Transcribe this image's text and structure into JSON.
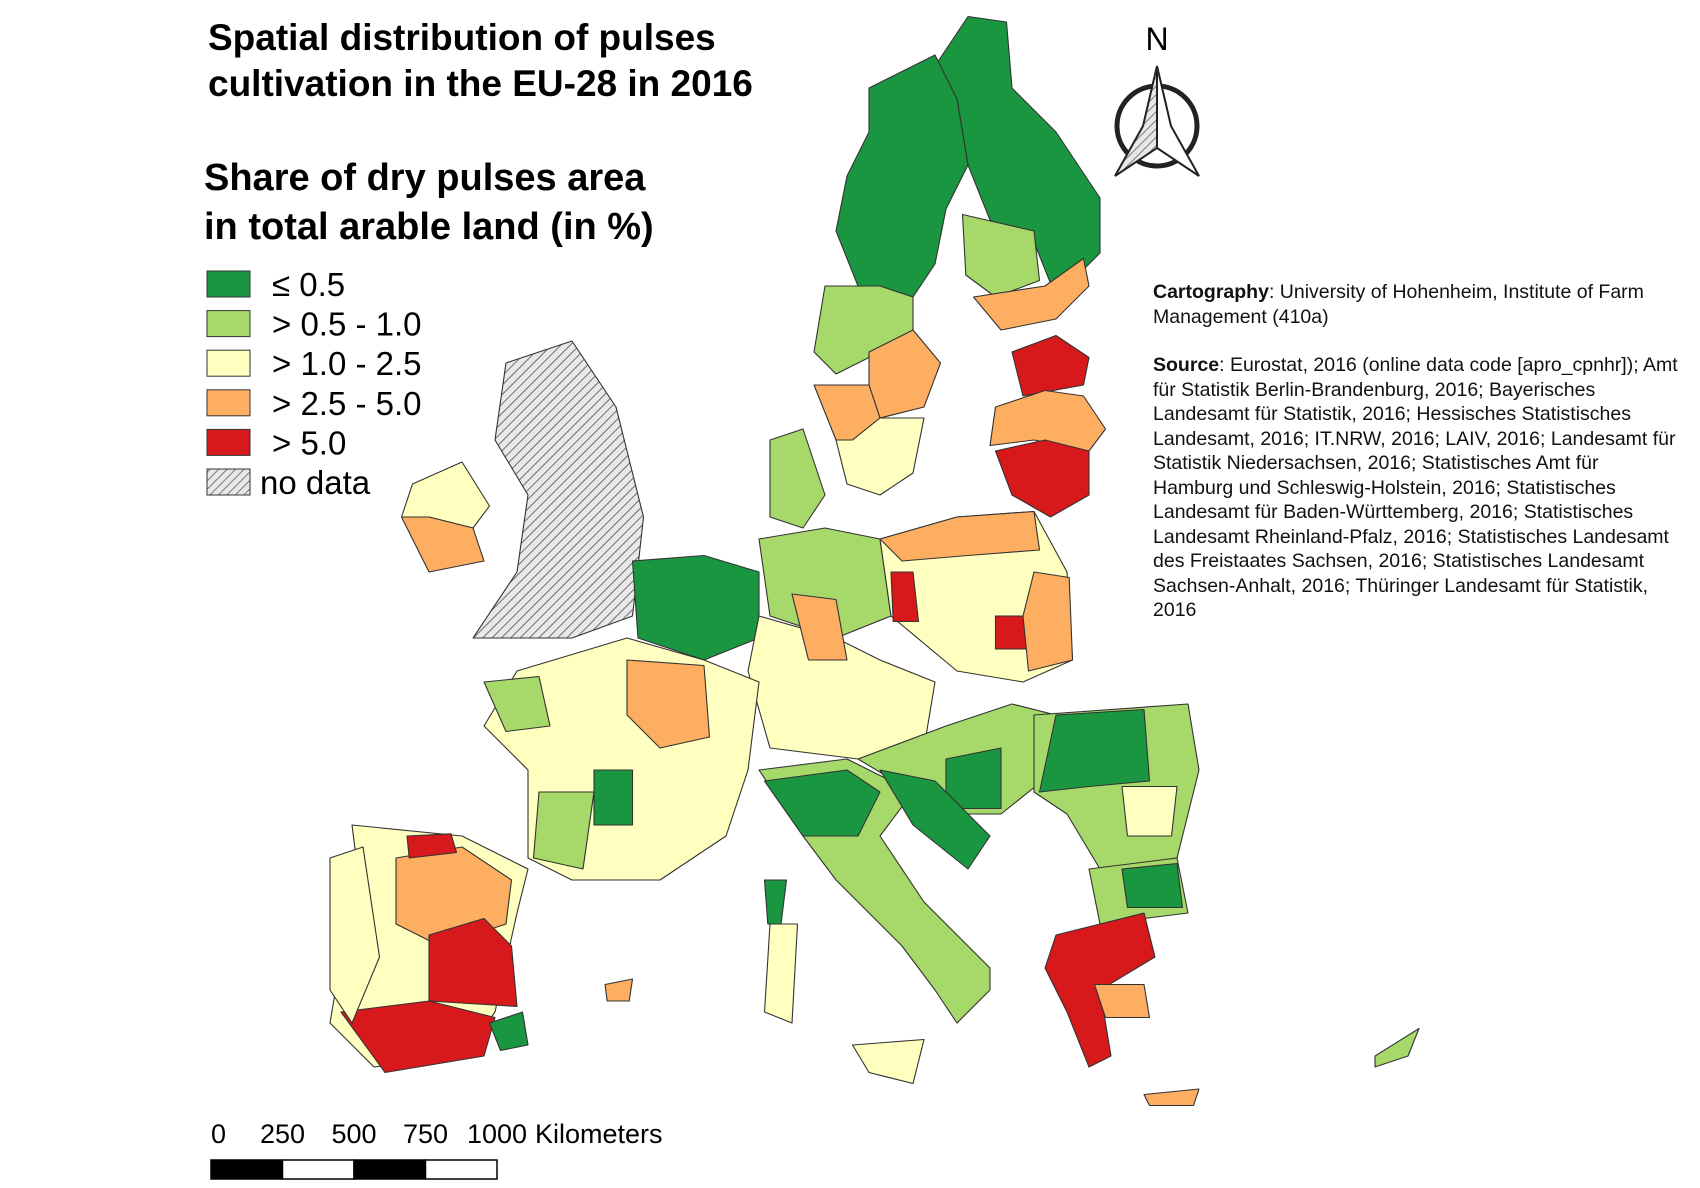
{
  "title": [
    "Spatial distribution of pulses",
    "cultivation in the EU-28 in 2016"
  ],
  "legend": {
    "title": [
      "Share of dry pulses area",
      "in total arable land (in %)"
    ],
    "items": [
      {
        "label": "≤ 0.5",
        "color": "#1a9641"
      },
      {
        "label": "> 0.5 - 1.0",
        "color": "#a6d96a"
      },
      {
        "label": "> 1.0 - 2.5",
        "color": "#ffffbf"
      },
      {
        "label": "> 2.5 - 5.0",
        "color": "#fdae61"
      },
      {
        "label": "> 5.0",
        "color": "#d7191c"
      },
      {
        "label": "no data"
      }
    ]
  },
  "north_arrow": "N",
  "scale_bar": {
    "labels": [
      "0",
      "250",
      "500",
      "750",
      "1000"
    ],
    "unit": "Kilometers"
  },
  "credits": {
    "cartography": {
      "label": "Cartography",
      "text": ": University of Hohenheim, Institute of Farm Management (410a)"
    },
    "source": {
      "label": "Source",
      "text": ": Eurostat, 2016 (online data code [apro_cpnhr]); Amt für Statistik Berlin-Brandenburg, 2016; Bayerisches Landesamt für Statistik, 2016; Hessisches Statistisches Landesamt, 2016; IT.NRW, 2016; LAIV, 2016; Landesamt für Statistik Niedersachsen, 2016; Statistisches Amt für Hamburg und Schleswig-Holstein, 2016; Statistisches Landesamt für Baden-Württemberg, 2016; Statistisches Landesamt Rheinland-Pfalz, 2016; Statistisches Landesamt des Freistaates Sachsen, 2016; Statistisches Landesamt Sachsen-Anhalt, 2016; Thüringer Landesamt für Statistik, 2016"
    }
  }
}
